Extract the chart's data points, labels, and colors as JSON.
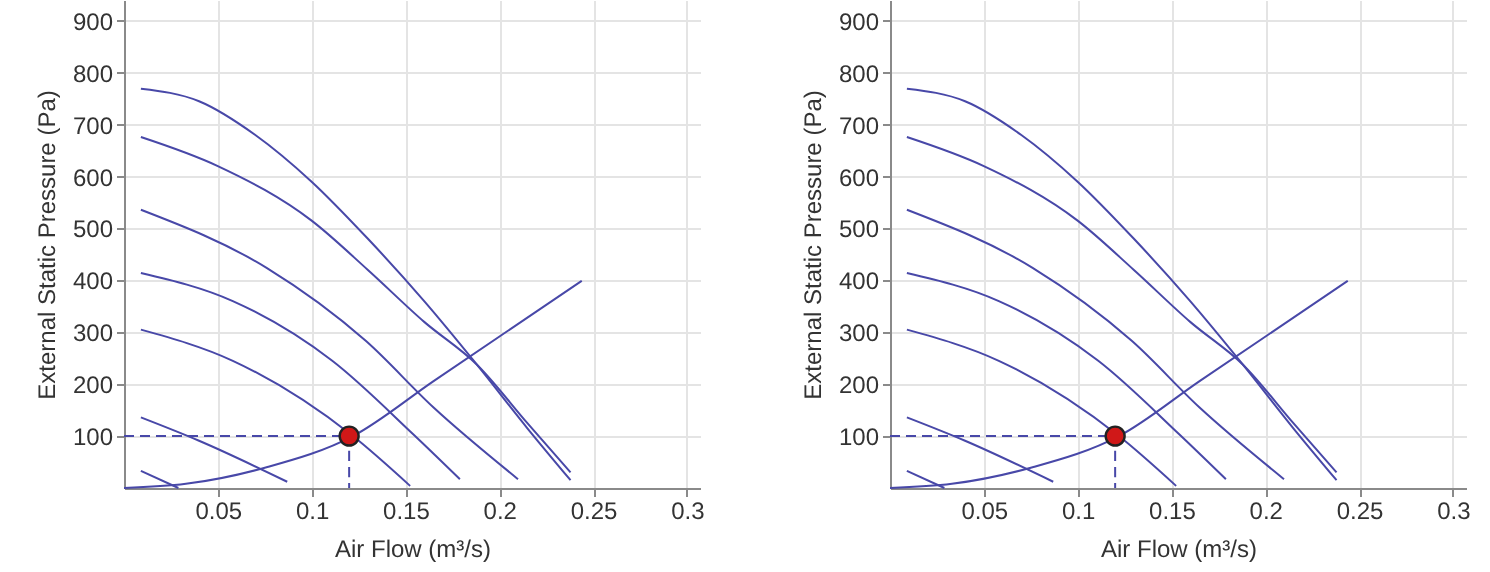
{
  "chart_data": [
    {
      "type": "line",
      "xlabel": "Air Flow (m³/s)",
      "ylabel": "External Static Pressure (Pa)",
      "xlim": [
        0,
        0.307
      ],
      "ylim": [
        0,
        940
      ],
      "xticks": [
        0.05,
        0.1,
        0.15,
        0.2,
        0.25,
        0.3
      ],
      "yticks": [
        100,
        200,
        300,
        400,
        500,
        600,
        700,
        800,
        900
      ],
      "grid": true,
      "series": [
        {
          "color": "#4848a8",
          "x": [
            0.009,
            0.04,
            0.07,
            0.1,
            0.13,
            0.16,
            0.188,
            0.215,
            0.238
          ],
          "values": [
            769,
            745,
            680,
            590,
            480,
            360,
            238,
            115,
            15
          ]
        },
        {
          "color": "#4848a8",
          "x": [
            0.009,
            0.05,
            0.1,
            0.13,
            0.16,
            0.188,
            0.215,
            0.238
          ],
          "values": [
            676,
            620,
            515,
            420,
            320,
            238,
            125,
            30
          ]
        },
        {
          "color": "#4848a8",
          "x": [
            0.009,
            0.076,
            0.129,
            0.165,
            0.21
          ],
          "values": [
            536,
            424,
            283,
            155,
            17
          ]
        },
        {
          "color": "#4848a8",
          "x": [
            0.009,
            0.058,
            0.111,
            0.154,
            0.179
          ],
          "values": [
            414,
            360,
            245,
            104,
            17
          ]
        },
        {
          "color": "#4848a8",
          "x": [
            0.009,
            0.058,
            0.122,
            0.1525
          ],
          "values": [
            305,
            245,
            100,
            4
          ]
        },
        {
          "color": "#4848a8",
          "x": [
            0.009,
            0.04,
            0.087
          ],
          "values": [
            136,
            91,
            12
          ]
        },
        {
          "color": "#4848a8",
          "x": [
            0.009,
            0.029
          ],
          "values": [
            33,
            0
          ]
        },
        {
          "color": "#4848a8",
          "x": [
            0,
            0.033,
            0.076,
            0.122,
            0.165,
            0.244
          ],
          "values": [
            0,
            8,
            40,
            100,
            206,
            399
          ]
        },
        {
          "color": "#4848a8",
          "line_style": "dashed",
          "x": [
            0,
            0.12,
            0.12
          ],
          "values": [
            100,
            100,
            0
          ]
        },
        {
          "type": "scatter",
          "marker": "circle",
          "color": "#d01818",
          "x": [
            0.12
          ],
          "values": [
            100
          ]
        }
      ]
    },
    {
      "type": "line",
      "xlabel": "Air Flow (m³/s)",
      "ylabel": "External Static Pressure (Pa)",
      "xlim": [
        0,
        0.307
      ],
      "ylim": [
        0,
        940
      ],
      "xticks": [
        0.05,
        0.1,
        0.15,
        0.2,
        0.25,
        0.3
      ],
      "yticks": [
        100,
        200,
        300,
        400,
        500,
        600,
        700,
        800,
        900
      ],
      "grid": true,
      "series": [
        {
          "color": "#4848a8",
          "x": [
            0.009,
            0.04,
            0.07,
            0.1,
            0.13,
            0.16,
            0.188,
            0.215,
            0.238
          ],
          "values": [
            769,
            745,
            680,
            590,
            480,
            360,
            238,
            115,
            15
          ]
        },
        {
          "color": "#4848a8",
          "x": [
            0.009,
            0.05,
            0.1,
            0.13,
            0.16,
            0.188,
            0.215,
            0.238
          ],
          "values": [
            676,
            620,
            515,
            420,
            320,
            238,
            125,
            30
          ]
        },
        {
          "color": "#4848a8",
          "x": [
            0.009,
            0.076,
            0.129,
            0.165,
            0.21
          ],
          "values": [
            536,
            424,
            283,
            155,
            17
          ]
        },
        {
          "color": "#4848a8",
          "x": [
            0.009,
            0.058,
            0.111,
            0.154,
            0.179
          ],
          "values": [
            414,
            360,
            245,
            104,
            17
          ]
        },
        {
          "color": "#4848a8",
          "x": [
            0.009,
            0.058,
            0.122,
            0.1525
          ],
          "values": [
            305,
            245,
            100,
            4
          ]
        },
        {
          "color": "#4848a8",
          "x": [
            0.009,
            0.04,
            0.087
          ],
          "values": [
            136,
            91,
            12
          ]
        },
        {
          "color": "#4848a8",
          "x": [
            0.009,
            0.029
          ],
          "values": [
            33,
            0
          ]
        },
        {
          "color": "#4848a8",
          "x": [
            0,
            0.033,
            0.076,
            0.122,
            0.165,
            0.244
          ],
          "values": [
            0,
            8,
            40,
            100,
            206,
            399
          ]
        },
        {
          "color": "#4848a8",
          "line_style": "dashed",
          "x": [
            0,
            0.12,
            0.12
          ],
          "values": [
            100,
            100,
            0
          ]
        },
        {
          "type": "scatter",
          "marker": "circle",
          "color": "#d01818",
          "x": [
            0.12
          ],
          "values": [
            100
          ]
        }
      ]
    }
  ]
}
